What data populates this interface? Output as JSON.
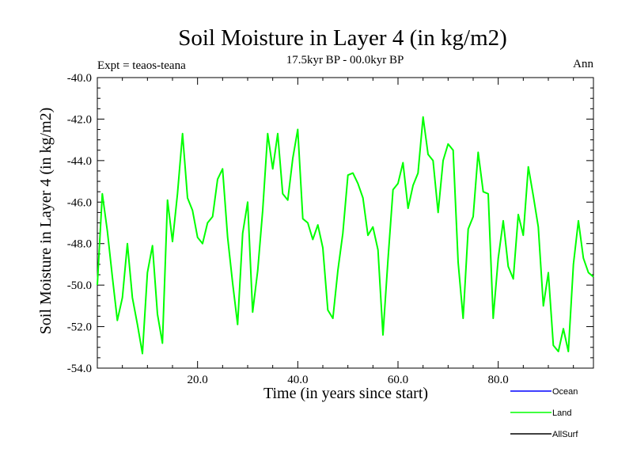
{
  "chart_data": {
    "type": "line",
    "title": "Soil Moisture in Layer 4 (in kg/m2)",
    "subtitle": "17.5kyr BP - 00.0kyr BP",
    "left_label": "Expt = teaos-teana",
    "right_label": "Ann",
    "xlabel": "Time (in years since start)",
    "ylabel": "Soil Moisture in Layer 4 (in kg/m2)",
    "xlim": [
      0,
      99
    ],
    "ylim": [
      -54,
      -40
    ],
    "x_ticks": [
      20,
      40,
      60,
      80
    ],
    "x_tick_labels": [
      "20.0",
      "40.0",
      "60.0",
      "80.0"
    ],
    "y_ticks": [
      -54,
      -52,
      -50,
      -48,
      -46,
      -44,
      -42,
      -40
    ],
    "y_tick_labels": [
      "-54.0",
      "-52.0",
      "-50.0",
      "-48.0",
      "-46.0",
      "-44.0",
      "-42.0",
      "-40.0"
    ],
    "legend": [
      {
        "name": "Ocean",
        "color": "#0000ff"
      },
      {
        "name": "Land",
        "color": "#00ff00"
      },
      {
        "name": "AllSurf",
        "color": "#000000"
      }
    ],
    "series": [
      {
        "name": "Land",
        "color": "#00ff00",
        "x": [
          0,
          1,
          2,
          3,
          4,
          5,
          6,
          7,
          8,
          9,
          10,
          11,
          12,
          13,
          14,
          15,
          16,
          17,
          18,
          19,
          20,
          21,
          22,
          23,
          24,
          25,
          26,
          27,
          28,
          29,
          30,
          31,
          32,
          33,
          34,
          35,
          36,
          37,
          38,
          39,
          40,
          41,
          42,
          43,
          44,
          45,
          46,
          47,
          48,
          49,
          50,
          51,
          52,
          53,
          54,
          55,
          56,
          57,
          58,
          59,
          60,
          61,
          62,
          63,
          64,
          65,
          66,
          67,
          68,
          69,
          70,
          71,
          72,
          73,
          74,
          75,
          76,
          77,
          78,
          79,
          80,
          81,
          82,
          83,
          84,
          85,
          86,
          87,
          88,
          89,
          90,
          91,
          92,
          93,
          94,
          95,
          96,
          97,
          98,
          99
        ],
        "values": [
          -50.0,
          -45.6,
          -47.4,
          -49.6,
          -51.7,
          -50.6,
          -48.0,
          -50.6,
          -51.9,
          -53.3,
          -49.4,
          -48.1,
          -51.4,
          -52.8,
          -45.9,
          -47.9,
          -45.6,
          -42.7,
          -45.8,
          -46.4,
          -47.7,
          -48.0,
          -47.0,
          -46.7,
          -44.9,
          -44.4,
          -47.7,
          -49.9,
          -51.9,
          -47.5,
          -46.0,
          -51.3,
          -49.3,
          -46.4,
          -42.7,
          -44.4,
          -42.7,
          -45.6,
          -45.9,
          -43.9,
          -42.5,
          -46.8,
          -47.0,
          -47.8,
          -47.1,
          -48.2,
          -51.2,
          -51.6,
          -49.3,
          -47.5,
          -44.7,
          -44.6,
          -45.1,
          -45.8,
          -47.6,
          -47.2,
          -48.3,
          -52.4,
          -48.8,
          -45.4,
          -45.1,
          -44.1,
          -46.3,
          -45.2,
          -44.6,
          -41.9,
          -43.7,
          -44.0,
          -46.5,
          -44.0,
          -43.2,
          -43.5,
          -48.9,
          -51.6,
          -47.3,
          -46.7,
          -43.6,
          -45.5,
          -45.6,
          -51.6,
          -48.7,
          -46.9,
          -49.1,
          -49.7,
          -46.6,
          -47.6,
          -44.3,
          -45.7,
          -47.2,
          -51.0,
          -49.4,
          -52.9,
          -53.2,
          -52.1,
          -53.2,
          -49.0,
          -46.9,
          -48.7,
          -49.4,
          -49.6
        ]
      }
    ]
  }
}
